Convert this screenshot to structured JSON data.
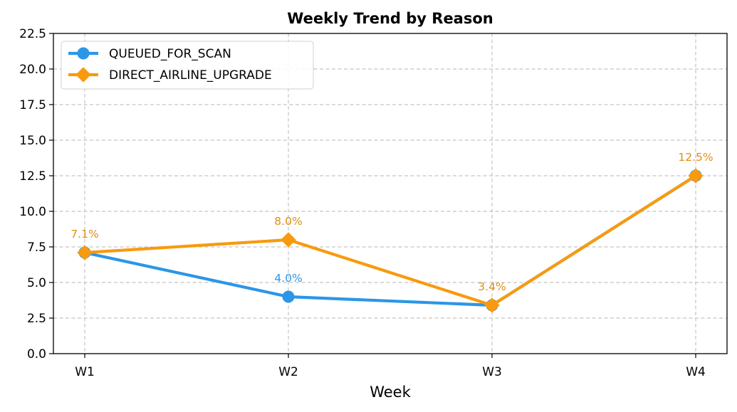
{
  "chart_data": {
    "type": "line",
    "title": "Weekly Trend by Reason",
    "xlabel": "Week",
    "ylabel": "",
    "categories": [
      "W1",
      "W2",
      "W3",
      "W4"
    ],
    "ylim": [
      0,
      22.5
    ],
    "yticks": [
      0.0,
      2.5,
      5.0,
      7.5,
      10.0,
      12.5,
      15.0,
      17.5,
      20.0,
      22.5
    ],
    "ytick_labels": [
      "0.0",
      "2.5",
      "5.0",
      "7.5",
      "10.0",
      "12.5",
      "15.0",
      "17.5",
      "20.0",
      "22.5"
    ],
    "grid": true,
    "legend_position": "top-left",
    "series": [
      {
        "name": "QUEUED_FOR_SCAN",
        "color": "#2b96e8",
        "marker": "circle",
        "values": [
          7.1,
          4.0,
          3.4,
          12.5
        ],
        "labels": [
          null,
          "4.0%",
          null,
          null
        ]
      },
      {
        "name": "DIRECT_AIRLINE_UPGRADE",
        "color": "#f89a0e",
        "marker": "diamond",
        "values": [
          7.1,
          8.0,
          3.4,
          12.5
        ],
        "labels": [
          "7.1%",
          "8.0%",
          "3.4%",
          "12.5%"
        ]
      }
    ],
    "label_color_overrides": {
      "DIRECT_AIRLINE_UPGRADE": "#e08e12"
    }
  }
}
